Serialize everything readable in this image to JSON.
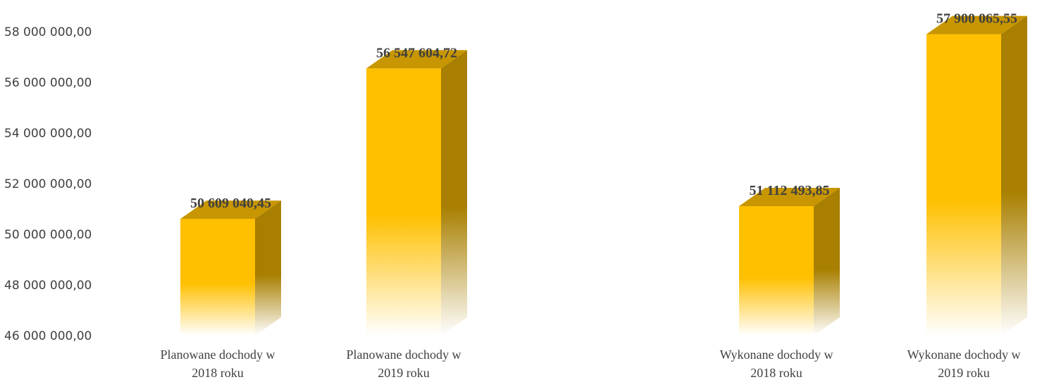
{
  "chart_data": {
    "type": "bar",
    "style": "3d-column",
    "title": "",
    "xlabel": "",
    "ylabel": "",
    "ylim": [
      46000000,
      58000000
    ],
    "y_ticks": [
      {
        "value": 46000000,
        "label": "46 000 000,00"
      },
      {
        "value": 48000000,
        "label": "48 000 000,00"
      },
      {
        "value": 50000000,
        "label": "50 000 000,00"
      },
      {
        "value": 52000000,
        "label": "52 000 000,00"
      },
      {
        "value": 54000000,
        "label": "54 000 000,00"
      },
      {
        "value": 56000000,
        "label": "56 000 000,00"
      },
      {
        "value": 58000000,
        "label": "58 000 000,00"
      }
    ],
    "grid": false,
    "legend": "none",
    "categories": [
      {
        "line1": "Planowane dochody w",
        "line2": "2018 roku"
      },
      {
        "line1": "Planowane dochody w",
        "line2": "2019 roku"
      },
      {
        "line1": "Wykonane dochody w",
        "line2": "2018 roku"
      },
      {
        "line1": "Wykonane dochody w",
        "line2": "2019 roku"
      }
    ],
    "values": [
      50609040.45,
      56547604.72,
      51112493.85,
      57900065.55
    ],
    "value_labels": [
      "50 609 040,45",
      "56 547 604,72",
      "51 112 493,85",
      "57 900 065,55"
    ],
    "colors": {
      "front": "#FFC000",
      "side": "#A87F00",
      "top": "#C79600"
    }
  }
}
